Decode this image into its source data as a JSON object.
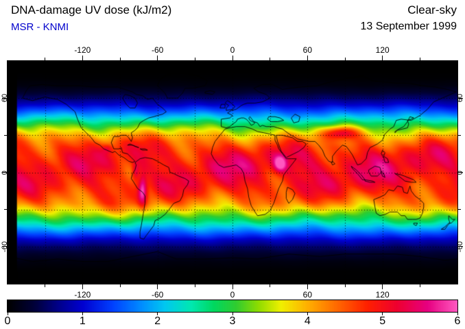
{
  "header": {
    "title": "DNA-damage UV dose (kJ/m2)",
    "source": "MSR - KNMI",
    "condition": "Clear-sky",
    "date": "13 September 1999"
  },
  "colors": {
    "title_text": "#000000",
    "source_text": "#0000cc",
    "background": "#ffffff",
    "map_background": "#000000"
  },
  "chart_data": {
    "type": "heatmap",
    "title": "DNA-damage UV dose (kJ/m2)",
    "provider": "MSR - KNMI",
    "condition": "Clear-sky",
    "date": "13 September 1999",
    "projection": "equirectangular world map with coastlines",
    "x_axis": {
      "range": [
        -180,
        180
      ],
      "tick_interval": 30,
      "labeled_ticks": [
        -120,
        -60,
        0,
        60,
        120
      ]
    },
    "y_axis": {
      "range": [
        -90,
        90
      ],
      "tick_interval": 30,
      "labeled_ticks": [
        60,
        0,
        -60
      ]
    },
    "grid": {
      "interval_deg": 30,
      "style": "dotted"
    },
    "colorbar": {
      "min": 0,
      "max": 6,
      "ticks": [
        0,
        1,
        2,
        3,
        4,
        5,
        6
      ],
      "units": "kJ/m2",
      "stops": [
        [
          0.0,
          "#000000"
        ],
        [
          0.35,
          "#000038"
        ],
        [
          0.7,
          "#000090"
        ],
        [
          1.0,
          "#0000d0"
        ],
        [
          1.4,
          "#0040ff"
        ],
        [
          1.8,
          "#0090ff"
        ],
        [
          2.1,
          "#00c8f0"
        ],
        [
          2.45,
          "#00e8b0"
        ],
        [
          2.75,
          "#00d860"
        ],
        [
          3.05,
          "#30cc30"
        ],
        [
          3.35,
          "#90dc00"
        ],
        [
          3.65,
          "#f0f000"
        ],
        [
          4.0,
          "#ffb000"
        ],
        [
          4.4,
          "#ff6800"
        ],
        [
          4.8,
          "#ff2000"
        ],
        [
          5.2,
          "#ee0030"
        ],
        [
          5.6,
          "#e60080"
        ],
        [
          6.0,
          "#ff58c0"
        ]
      ]
    },
    "field_description": "Clear-sky DNA-damage UV dose: zonal bands peaking about 5 kJ/m2 over the tropics, falling to 0 toward the poles; enhanced (magenta) over high terrain",
    "zonal_profile": {
      "lat": [
        -90,
        -80,
        -72,
        -66,
        -60,
        -55,
        -50,
        -45,
        -40,
        -35,
        -30,
        -25,
        -20,
        -15,
        -10,
        -5,
        0,
        5,
        10,
        15,
        20,
        25,
        30,
        35,
        40,
        45,
        50,
        55,
        60,
        65,
        70,
        76,
        82,
        90
      ],
      "value": [
        0,
        0.01,
        0.1,
        0.28,
        0.55,
        0.9,
        1.4,
        1.95,
        2.6,
        3.2,
        3.8,
        4.3,
        4.6,
        4.8,
        4.95,
        5.0,
        5.05,
        5.1,
        5.05,
        4.95,
        4.75,
        4.45,
        4.0,
        3.4,
        2.75,
        2.05,
        1.45,
        0.95,
        0.55,
        0.28,
        0.1,
        0.02,
        0,
        0
      ]
    },
    "hotspots": [
      {
        "name": "Andes-Altiplano",
        "lon": -72,
        "lat": -14,
        "amplitude": 1.4,
        "sigma_lon": 2.5,
        "sigma_lat": 9
      },
      {
        "name": "Northern-Andes",
        "lon": -77.5,
        "lat": 0,
        "amplitude": 0.9,
        "sigma_lon": 2,
        "sigma_lat": 5
      },
      {
        "name": "Central-Mexico",
        "lon": -100,
        "lat": 19,
        "amplitude": 0.5,
        "sigma_lon": 3,
        "sigma_lat": 2.5
      },
      {
        "name": "East-African-Highlands",
        "lon": 38,
        "lat": 7,
        "amplitude": 1.1,
        "sigma_lon": 3.5,
        "sigma_lat": 4.5
      },
      {
        "name": "Tibetan-Plateau",
        "lon": 86,
        "lat": 32,
        "amplitude": 1.4,
        "sigma_lon": 10,
        "sigma_lat": 3.5
      },
      {
        "name": "New-Guinea-Highlands",
        "lon": 141,
        "lat": -5.5,
        "amplitude": 0.5,
        "sigma_lon": 3,
        "sigma_lat": 2
      }
    ],
    "no_data_strip": {
      "lon_range": [
        -180,
        -172.5
      ]
    }
  }
}
